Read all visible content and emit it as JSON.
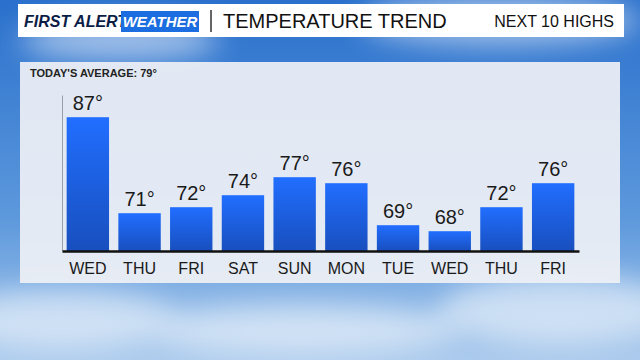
{
  "chart_data": {
    "type": "bar",
    "title": "TEMPERATURE TREND",
    "subtitle": "NEXT 10 HIGHS",
    "annotations": [
      "FIRST ALERT",
      "WEATHER",
      "TODAY'S AVERAGE: 79°"
    ],
    "categories": [
      "WED",
      "THU",
      "FRI",
      "SAT",
      "SUN",
      "MON",
      "TUE",
      "WED",
      "THU",
      "FRI"
    ],
    "values": [
      87,
      71,
      72,
      74,
      77,
      76,
      69,
      68,
      72,
      76
    ],
    "value_labels": [
      "87°",
      "71°",
      "72°",
      "74°",
      "77°",
      "76°",
      "69°",
      "68°",
      "72°",
      "76°"
    ],
    "color": "#1d5fe3",
    "ylim": [
      64.7,
      90.7
    ],
    "grid": false,
    "data_labels": true,
    "tick_labels": "x"
  }
}
